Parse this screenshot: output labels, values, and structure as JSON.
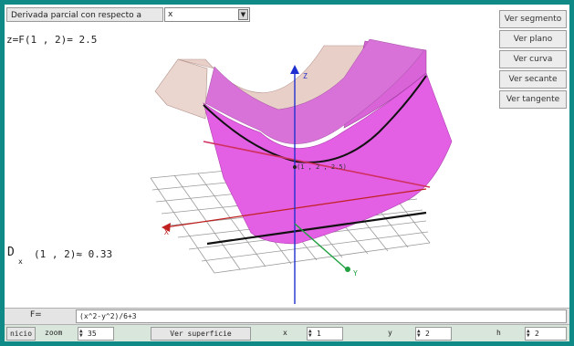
{
  "topbar": {
    "derivative_label": "Derivada parcial con respecto a",
    "variable_select": "x"
  },
  "side_buttons": [
    "Ver segmento",
    "Ver plano",
    "Ver curva",
    "Ver secante",
    "Ver tangente"
  ],
  "display": {
    "function_value": "z=F(1 , 2)= 2.5",
    "derivative_prefix": "D",
    "derivative_sub": "x",
    "derivative_value": "(1 , 2)≈ 0.33",
    "point_label": "(1 , 2 , 2.5)",
    "axis_x": "X",
    "axis_y": "Y",
    "axis_z": "Z"
  },
  "colors": {
    "surface": "#e060e0",
    "surface_light": "#e8c8c0",
    "tangent_line": "#d03060",
    "curve": "#111111",
    "axis_z": "#2030d0",
    "axis_x": "#c02020",
    "axis_y": "#20a040",
    "background": "#0f8a86"
  },
  "formula": {
    "label": "F=",
    "value": "(x^2-y^2)/6+3"
  },
  "bottom": {
    "inicio_label": "nicio",
    "zoom_label": "zoom",
    "zoom_value": "35",
    "surface_button": "Ver superficie",
    "x_label": "x",
    "x_value": "1",
    "y_label": "y",
    "y_value": "2",
    "h_label": "h",
    "h_value": "2"
  }
}
